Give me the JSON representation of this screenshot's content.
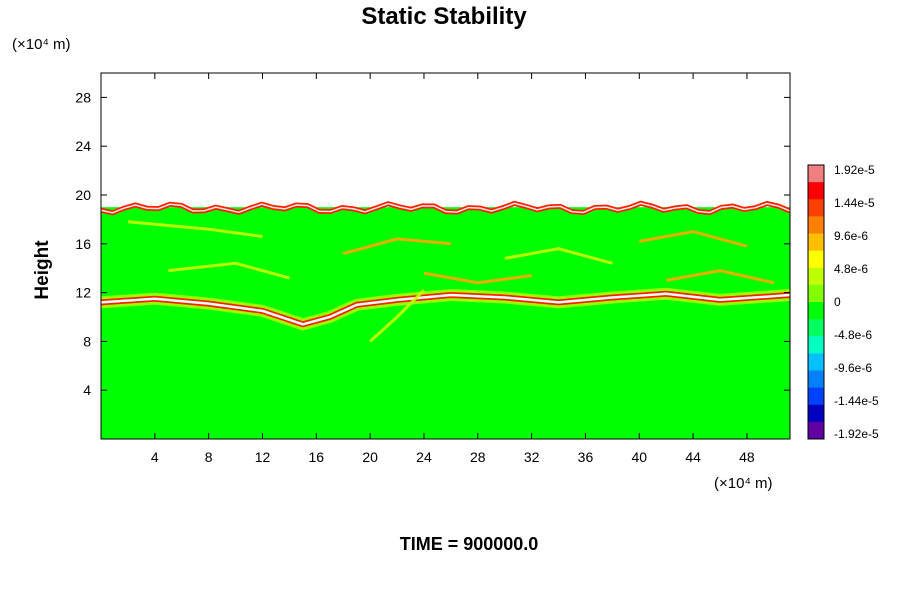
{
  "chart_data": {
    "type": "heatmap",
    "title": "Static Stability",
    "ylabel": "Height",
    "xlabel": "",
    "y_unit_label": "(×10⁴ m)",
    "x_unit_label": "(×10⁴ m)",
    "x_ticks": [
      4,
      8,
      12,
      16,
      20,
      24,
      28,
      32,
      36,
      40,
      44,
      48
    ],
    "y_ticks": [
      4,
      8,
      12,
      16,
      20,
      24,
      28
    ],
    "xlim": [
      0,
      51.2
    ],
    "ylim": [
      0,
      30
    ],
    "colorbar": {
      "labels": [
        "1.92e-5",
        "1.44e-5",
        "9.6e-6",
        "4.8e-6",
        "0",
        "-4.8e-6",
        "-9.6e-6",
        "-1.44e-5",
        "-1.92e-5"
      ],
      "range": [
        -1.92e-05,
        1.92e-05
      ],
      "colors": [
        "#f08080",
        "#ff0000",
        "#ff4000",
        "#ff8000",
        "#ffbf00",
        "#ffff00",
        "#c0ff00",
        "#80ff00",
        "#00ff00",
        "#00ff60",
        "#00ffc0",
        "#00c0ff",
        "#0080ff",
        "#0040ff",
        "#0000c0",
        "#6000a0"
      ]
    },
    "field_features": {
      "background_value": 0,
      "upper_layer_top_height": 19,
      "tropopause_band_height": 11.5
    },
    "footer": "TIME = 900000.0"
  },
  "colors": {
    "background": "#ffffff",
    "field_base": "#00ff00",
    "stable_light": "#c8ff00",
    "stable_mid": "#ffaa00",
    "stable_strong": "#ff2000",
    "saturated": "#ffffff"
  }
}
